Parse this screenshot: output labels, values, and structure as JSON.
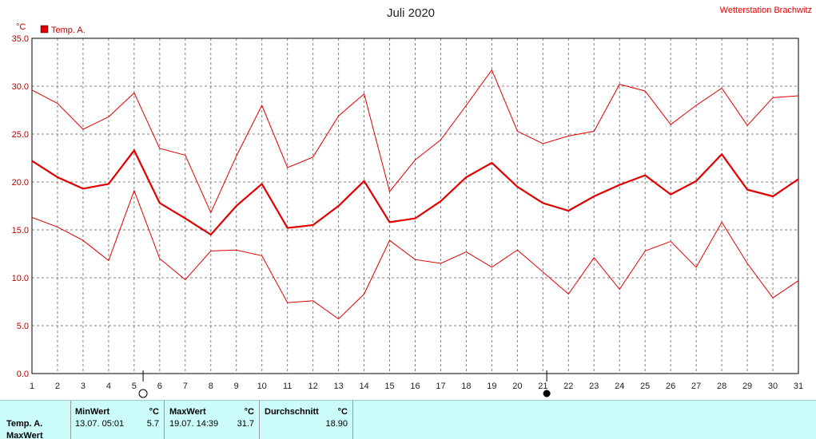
{
  "header": {
    "title": "Juli 2020",
    "station": "Wetterstation Brachwitz",
    "unit": "°C",
    "legend_label": "Temp. A."
  },
  "colors": {
    "series": "#e00000",
    "grid": "#808080",
    "axis": "#000000"
  },
  "moon_phases": [
    {
      "day": 5,
      "phase": "full-moon",
      "icon": "circle-outline-icon"
    },
    {
      "day": 20.8,
      "phase": "new-moon",
      "icon": "circle-filled-icon"
    }
  ],
  "chart_data": {
    "type": "line",
    "title": "Juli 2020",
    "ylabel": "°C",
    "xlim": [
      1,
      31
    ],
    "ylim": [
      0,
      35
    ],
    "x": [
      1,
      2,
      3,
      4,
      5,
      6,
      7,
      8,
      9,
      10,
      11,
      12,
      13,
      14,
      15,
      16,
      17,
      18,
      19,
      20,
      21,
      22,
      23,
      24,
      25,
      26,
      27,
      28,
      29,
      30,
      31
    ],
    "xticks": [
      "1",
      "2",
      "3",
      "4",
      "5",
      "6",
      "7",
      "8",
      "9",
      "10",
      "11",
      "12",
      "13",
      "14",
      "15",
      "16",
      "17",
      "18",
      "19",
      "20",
      "21",
      "22",
      "23",
      "24",
      "25",
      "26",
      "27",
      "28",
      "29",
      "30",
      "31"
    ],
    "yticks": [
      "0.0",
      "5.0",
      "10.0",
      "15.0",
      "20.0",
      "25.0",
      "30.0",
      "35.0"
    ],
    "ytick_values": [
      0,
      5,
      10,
      15,
      20,
      25,
      30,
      35
    ],
    "grid": true,
    "legend": "top-left",
    "series": [
      {
        "name": "Temp. A.",
        "role": "mean",
        "values": [
          22.2,
          20.5,
          19.3,
          19.8,
          23.3,
          17.8,
          16.2,
          14.5,
          17.5,
          19.8,
          15.2,
          15.5,
          17.5,
          20.1,
          15.8,
          16.2,
          18.0,
          20.5,
          22.0,
          19.5,
          17.8,
          17.0,
          18.5,
          19.7,
          20.7,
          18.7,
          20.1,
          22.9,
          19.2,
          18.5,
          20.3
        ]
      },
      {
        "role": "max",
        "values": [
          29.6,
          28.2,
          25.5,
          26.8,
          29.3,
          23.5,
          22.8,
          16.8,
          22.7,
          28.0,
          21.5,
          22.6,
          26.9,
          29.2,
          19.0,
          22.3,
          24.4,
          28.0,
          31.7,
          25.3,
          24.0,
          24.8,
          25.3,
          30.2,
          29.5,
          26.0,
          28.0,
          29.8,
          25.9,
          28.8,
          29.0
        ]
      },
      {
        "role": "min",
        "values": [
          16.3,
          15.3,
          13.9,
          11.8,
          19.1,
          12.0,
          9.8,
          12.8,
          12.9,
          12.3,
          7.4,
          7.6,
          5.7,
          8.3,
          13.9,
          11.9,
          11.5,
          12.7,
          11.1,
          12.9,
          10.6,
          8.3,
          12.1,
          8.8,
          12.8,
          13.8,
          11.1,
          15.8,
          11.5,
          7.9,
          9.7
        ]
      }
    ]
  },
  "stats": {
    "row_label": "Temp. A.",
    "row_label2": "MaxWert",
    "min": {
      "header": "MinWert",
      "unit": "°C",
      "datetime": "13.07.  05:01",
      "value": "5.7"
    },
    "max": {
      "header": "MaxWert",
      "unit": "°C",
      "datetime": "19.07.  14:39",
      "value": "31.7"
    },
    "avg": {
      "header": "Durchschnitt",
      "unit": "°C",
      "value": "18.90"
    }
  }
}
